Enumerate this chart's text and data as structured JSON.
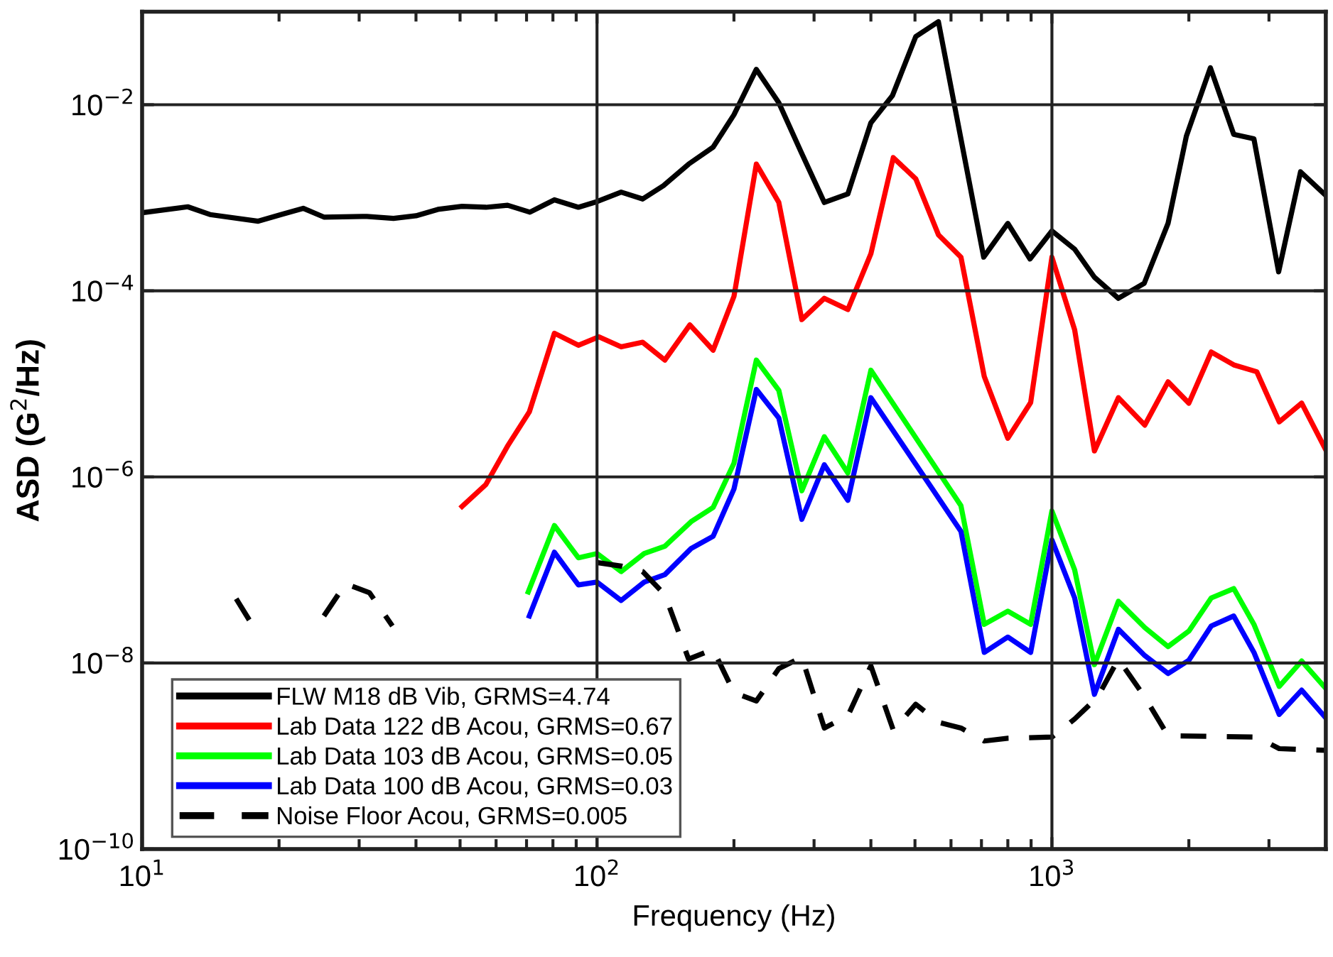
{
  "chart_data": {
    "type": "line",
    "xlabel": "Frequency (Hz)",
    "ylabel": "ASD (G$^{2}$/Hz)",
    "log": "xy",
    "grid": true,
    "legend": "bottom left",
    "line_style": "solid",
    "marker": "none",
    "xlim": [
      10,
      4000
    ],
    "xticks": [
      {
        "value": 10,
        "label": "10$^{1}$"
      },
      {
        "value": 100,
        "label": "10$^{2}$"
      },
      {
        "value": 1000,
        "label": "10$^{3}$"
      }
    ],
    "ylim": [
      1e-10,
      0.1
    ],
    "yticks": [
      {
        "value": 1e-10,
        "label": "10$^{−10}$"
      },
      {
        "value": 1e-08,
        "label": "10$^{−8}$"
      },
      {
        "value": 1e-06,
        "label": "10$^{−6}$"
      },
      {
        "value": 0.0001,
        "label": "10$^{−4}$"
      },
      {
        "value": 0.01,
        "label": "10$^{−2}$"
      }
    ],
    "series": [
      {
        "name": "FLW M18 dB Vib, GRMS=4.74",
        "color": "#000000",
        "x": [
          10,
          12.6,
          14.1,
          18,
          20.2,
          22.6,
          25.1,
          31.2,
          35.7,
          40,
          44.7,
          50.5,
          57,
          63.6,
          71.2,
          80.6,
          91,
          100,
          113,
          126,
          140,
          159,
          180,
          200,
          224,
          251,
          281,
          316,
          356,
          400,
          446,
          502,
          563,
          708,
          800,
          895,
          1000,
          1122,
          1240,
          1400,
          1595,
          1800,
          1975,
          2230,
          2510,
          2780,
          3150,
          3520,
          3990
        ],
        "values": [
          0.00069,
          0.0008,
          0.00066,
          0.00056,
          0.00066,
          0.00077,
          0.00062,
          0.00063,
          0.0006,
          0.00064,
          0.00075,
          0.00081,
          0.00079,
          0.00083,
          0.0007,
          0.00095,
          0.00079,
          0.00091,
          0.00115,
          0.00097,
          0.00135,
          0.0023,
          0.0035,
          0.0078,
          0.024,
          0.0105,
          0.0031,
          0.00089,
          0.0011,
          0.0064,
          0.0125,
          0.054,
          0.078,
          0.00023,
          0.00053,
          0.00022,
          0.00044,
          0.00028,
          0.00014,
          8.3e-05,
          0.00012,
          0.00053,
          0.0046,
          0.025,
          0.0048,
          0.0043,
          0.00016,
          0.0019,
          0.00107
        ]
      },
      {
        "name": "Lab Data 122 dB Acou, GRMS=0.67",
        "color": "#ff0000",
        "x": [
          50.5,
          57,
          63.8,
          71,
          80.6,
          91,
          101,
          113,
          126,
          141,
          160,
          180,
          200,
          224,
          251,
          282,
          316,
          356,
          400,
          448,
          502,
          563,
          631,
          710,
          800,
          898,
          1000,
          1122,
          1240,
          1400,
          1600,
          1800,
          2000,
          2240,
          2510,
          2820,
          3160,
          3540,
          3990
        ],
        "values": [
          4.8e-07,
          8.3e-07,
          2.2e-06,
          5e-06,
          3.5e-05,
          2.6e-05,
          3.2e-05,
          2.5e-05,
          2.8e-05,
          1.8e-05,
          4.3e-05,
          2.3e-05,
          8.7e-05,
          0.0023,
          0.00089,
          4.9e-05,
          8.3e-05,
          6.3e-05,
          0.00025,
          0.0027,
          0.0016,
          0.0004,
          0.00023,
          1.2e-05,
          2.6e-06,
          6.3e-06,
          0.00023,
          3.8e-05,
          1.9e-06,
          7.1e-06,
          3.6e-06,
          1.05e-05,
          6.2e-06,
          2.2e-05,
          1.6e-05,
          1.35e-05,
          3.9e-06,
          6.2e-06,
          2e-06
        ]
      },
      {
        "name": "Lab Data 103 dB Acou, GRMS=0.05",
        "color": "#00ff00",
        "x": [
          70.6,
          80.6,
          91,
          100,
          113,
          127,
          141,
          161,
          180,
          200,
          224,
          251,
          282,
          316,
          356,
          400,
          631,
          710,
          800,
          898,
          1000,
          1122,
          1240,
          1400,
          1600,
          1800,
          2000,
          2240,
          2510,
          2780,
          3160,
          3540,
          3990
        ],
        "values": [
          5.8e-08,
          3e-07,
          1.35e-07,
          1.5e-07,
          9.6e-08,
          1.5e-07,
          1.8e-07,
          3.3e-07,
          4.7e-07,
          1.4e-06,
          1.8e-05,
          8.5e-06,
          7.1e-07,
          2.7e-06,
          1.1e-06,
          1.4e-05,
          4.9e-07,
          2.6e-08,
          3.6e-08,
          2.6e-08,
          4.3e-07,
          1e-07,
          9.6e-09,
          4.6e-08,
          2.4e-08,
          1.5e-08,
          2.2e-08,
          5e-08,
          6.3e-08,
          2.6e-08,
          5.6e-09,
          1.05e-08,
          5.4e-09
        ]
      },
      {
        "name": "Lab Data 100 dB Acou, GRMS=0.03",
        "color": "#0000ff",
        "x": [
          71,
          80.6,
          91,
          100,
          113,
          127,
          141,
          161,
          180,
          200,
          224,
          251,
          282,
          316,
          356,
          400,
          631,
          710,
          800,
          898,
          1000,
          1122,
          1240,
          1400,
          1600,
          1800,
          2000,
          2240,
          2510,
          2780,
          3160,
          3540,
          3990
        ],
        "values": [
          3.2e-08,
          1.55e-07,
          6.9e-08,
          7.4e-08,
          4.7e-08,
          7.4e-08,
          8.9e-08,
          1.7e-07,
          2.3e-07,
          7.4e-07,
          8.7e-06,
          4.3e-06,
          3.5e-07,
          1.35e-06,
          5.6e-07,
          7.1e-06,
          2.6e-07,
          1.3e-08,
          1.9e-08,
          1.3e-08,
          2.1e-07,
          5e-08,
          4.6e-09,
          2.3e-08,
          1.2e-08,
          7.7e-09,
          1.07e-08,
          2.5e-08,
          3.2e-08,
          1.3e-08,
          2.8e-09,
          5.1e-09,
          2.6e-09
        ]
      },
      {
        "name": "Noise Floor Acou, GRMS=0.005",
        "color": "#000000",
        "line_style": "dashed",
        "x": [
          16.1,
          17.2,
          22.6,
          25.1,
          28,
          31.6,
          35.5,
          40,
          91,
          100,
          113,
          126,
          141,
          159,
          180,
          200,
          224,
          251,
          282,
          316,
          356,
          400,
          448,
          502,
          563,
          631,
          710,
          800,
          1000,
          1122,
          1260,
          1400,
          1600,
          1800,
          2820,
          3160,
          3990
        ],
        "values": [
          4.9e-08,
          2.9e-08,
          null,
          3.2e-08,
          7.1e-08,
          5.7e-08,
          2.5e-08,
          null,
          null,
          1.2e-07,
          1.1e-07,
          9.6e-08,
          5.4e-08,
          1.1e-08,
          1.4e-08,
          4.8e-09,
          3.9e-09,
          8.7e-09,
          1.15e-08,
          2e-09,
          2.7e-09,
          9.3e-09,
          1.9e-09,
          3.6e-09,
          2.3e-09,
          2e-09,
          1.45e-09,
          1.55e-09,
          1.6e-09,
          2.5e-09,
          4.3e-09,
          1.1e-08,
          4.3e-09,
          1.65e-09,
          1.6e-09,
          1.2e-09,
          1.15e-09
        ]
      }
    ]
  }
}
